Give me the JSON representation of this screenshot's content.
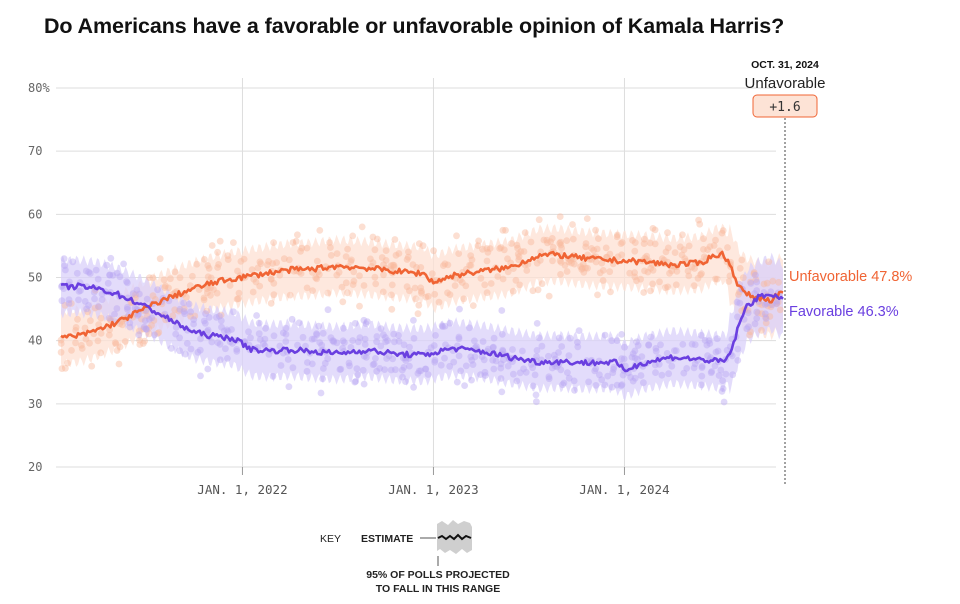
{
  "title": "Do Americans have a favorable or unfavorable opinion of Kamala Harris?",
  "colors": {
    "favorable": "#6a3fe0",
    "unfavorable": "#f06434",
    "favorable_band": "#d9d0fa",
    "unfavorable_band": "#fde0d3",
    "favorable_dot": "#b7a7f1",
    "unfavorable_dot": "#f9b89c",
    "grid": "#dddddd",
    "badge_fill": "#fde3d6",
    "badge_border": "#f06434"
  },
  "annotation": {
    "date": "OCT. 31, 2024",
    "leader": "Unfavorable",
    "margin": "+1.6"
  },
  "key": {
    "label": "KEY",
    "estimate": "ESTIMATE",
    "range_line1": "95% OF POLLS PROJECTED",
    "range_line2": "TO FALL IN THIS RANGE"
  },
  "chart_data": {
    "type": "line",
    "title": "Do Americans have a favorable or unfavorable opinion of Kamala Harris?",
    "x_range": [
      "2021-01-20",
      "2024-10-31"
    ],
    "ylim": [
      20,
      80
    ],
    "yticks": [
      20,
      30,
      40,
      50,
      60,
      70,
      80
    ],
    "ytick_labels": [
      "20",
      "30",
      "40",
      "50",
      "60",
      "70",
      "80%"
    ],
    "xticks": [
      2022,
      2023,
      2024
    ],
    "xtick_labels": [
      "JAN. 1, 2022",
      "JAN. 1, 2023",
      "JAN. 1, 2024"
    ],
    "grid": true,
    "series": [
      {
        "name": "Unfavorable",
        "end_label": "Unfavorable 47.8%",
        "final_value": 47.8,
        "x": [
          2021.05,
          2021.15,
          2021.25,
          2021.35,
          2021.45,
          2021.55,
          2021.65,
          2021.75,
          2021.85,
          2021.95,
          2022.05,
          2022.15,
          2022.25,
          2022.35,
          2022.5,
          2022.65,
          2022.8,
          2022.95,
          2023.0,
          2023.1,
          2023.25,
          2023.4,
          2023.55,
          2023.65,
          2023.8,
          2023.95,
          2024.1,
          2024.25,
          2024.4,
          2024.47,
          2024.52,
          2024.56,
          2024.6,
          2024.64,
          2024.7,
          2024.77,
          2024.83
        ],
        "values": [
          40.5,
          40.8,
          41.8,
          43.0,
          44.5,
          46.0,
          47.2,
          48.3,
          49.2,
          49.8,
          50.3,
          50.8,
          51.2,
          51.3,
          51.8,
          51.5,
          51.0,
          50.6,
          49.2,
          50.3,
          51.0,
          51.6,
          53.5,
          53.6,
          53.0,
          52.7,
          52.5,
          52.0,
          52.3,
          53.5,
          53.7,
          51.5,
          48.5,
          47.3,
          46.8,
          46.5,
          47.8
        ]
      },
      {
        "name": "Favorable",
        "end_label": "Favorable 46.3%",
        "final_value": 46.3,
        "x": [
          2021.05,
          2021.15,
          2021.25,
          2021.35,
          2021.45,
          2021.55,
          2021.65,
          2021.75,
          2021.85,
          2021.95,
          2022.05,
          2022.15,
          2022.25,
          2022.35,
          2022.5,
          2022.65,
          2022.8,
          2022.95,
          2023.1,
          2023.25,
          2023.4,
          2023.55,
          2023.65,
          2023.8,
          2023.95,
          2024.0,
          2024.1,
          2024.25,
          2024.4,
          2024.5,
          2024.53,
          2024.56,
          2024.6,
          2024.64,
          2024.7,
          2024.77,
          2024.83
        ],
        "values": [
          48.5,
          48.6,
          48.2,
          47.3,
          46.0,
          44.5,
          42.8,
          41.3,
          40.7,
          40.4,
          38.6,
          38.4,
          38.6,
          38.3,
          38.0,
          38.5,
          37.9,
          37.7,
          38.8,
          38.3,
          37.4,
          36.6,
          36.7,
          36.5,
          36.6,
          35.3,
          36.5,
          37.4,
          37.0,
          36.7,
          36.8,
          38.5,
          42.5,
          45.5,
          46.8,
          47.5,
          46.3
        ]
      }
    ]
  }
}
